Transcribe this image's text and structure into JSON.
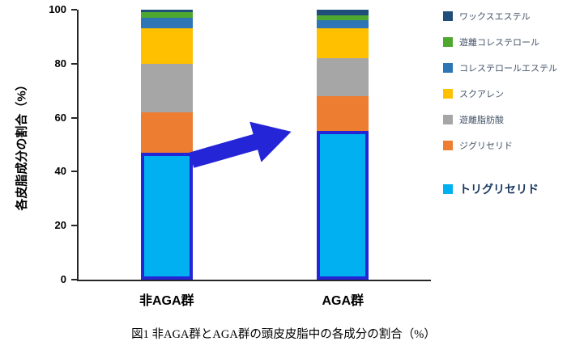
{
  "chart_data": {
    "type": "bar",
    "stacked": true,
    "title": "",
    "ylabel": "各皮脂成分の割合（%）",
    "xlabel": "",
    "ylim": [
      0,
      100
    ],
    "yticks": [
      0,
      20,
      40,
      60,
      80,
      100
    ],
    "grid": false,
    "legend_position": "right",
    "categories": [
      "非AGA群",
      "AGA群"
    ],
    "series": [
      {
        "name": "トリグリセリド",
        "color": "#00B0F0",
        "values": [
          47,
          55
        ],
        "emphasis": true
      },
      {
        "name": "ジグリセリド",
        "color": "#ED7D31",
        "values": [
          15,
          13
        ],
        "emphasis": false
      },
      {
        "name": "遊離脂肪酸",
        "color": "#A6A6A6",
        "values": [
          18,
          14
        ],
        "emphasis": false
      },
      {
        "name": "スクアレン",
        "color": "#FFC000",
        "values": [
          13,
          11
        ],
        "emphasis": false
      },
      {
        "name": "コレステロールエステル",
        "color": "#2E75B6",
        "values": [
          4,
          3
        ],
        "emphasis": false
      },
      {
        "name": "遊離コレステロール",
        "color": "#4EA72E",
        "values": [
          2,
          2
        ],
        "emphasis": false
      },
      {
        "name": "ワックスエステル",
        "color": "#1F4E79",
        "values": [
          1,
          2
        ],
        "emphasis": false
      }
    ],
    "highlight_border_color": "#2525D8"
  },
  "annotation_arrow": {
    "color": "#2525D8",
    "direction": "up-right",
    "meaning": "increase from 非AGA群 to AGA群"
  },
  "caption": "図1 非AGA群とAGA群の頭皮皮脂中の各成分の割合（%）"
}
